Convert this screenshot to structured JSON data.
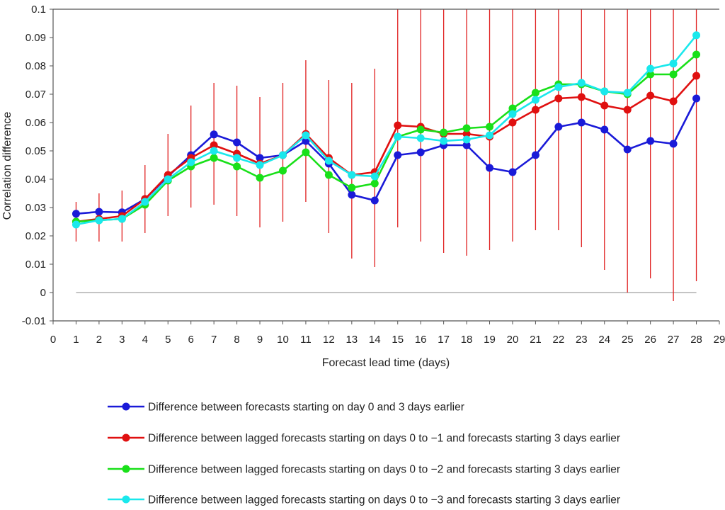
{
  "chart_data": {
    "type": "line",
    "title": "",
    "xlabel": "Forecast lead time (days)",
    "ylabel": "Correlation difference",
    "xlim": [
      0,
      29
    ],
    "ylim": [
      -0.01,
      0.1
    ],
    "xticks": [
      0,
      1,
      2,
      3,
      4,
      5,
      6,
      7,
      8,
      9,
      10,
      11,
      12,
      13,
      14,
      15,
      16,
      17,
      18,
      19,
      20,
      21,
      22,
      23,
      24,
      25,
      26,
      27,
      28,
      29
    ],
    "yticks": [
      -0.01,
      0,
      0.01,
      0.02,
      0.03,
      0.04,
      0.05,
      0.06,
      0.07,
      0.08,
      0.09,
      0.1
    ],
    "ytick_labels": [
      "-0.01",
      "0",
      "0.01",
      "0.02",
      "0.03",
      "0.04",
      "0.05",
      "0.06",
      "0.07",
      "0.08",
      "0.09",
      "0.1"
    ],
    "grid": false,
    "legend_position": "bottom",
    "zero_line_color": "#b0b0b0",
    "error_bar_color": "#e02020",
    "x": [
      1,
      2,
      3,
      4,
      5,
      6,
      7,
      8,
      9,
      10,
      11,
      12,
      13,
      14,
      15,
      16,
      17,
      18,
      19,
      20,
      21,
      22,
      23,
      24,
      25,
      26,
      27,
      28
    ],
    "error_bars": {
      "low": [
        0.018,
        0.018,
        0.018,
        0.021,
        0.027,
        0.03,
        0.031,
        0.027,
        0.023,
        0.025,
        0.032,
        0.021,
        0.012,
        0.009,
        0.023,
        0.018,
        0.014,
        0.013,
        0.015,
        0.018,
        0.022,
        0.022,
        0.016,
        0.008,
        0.0,
        0.005,
        -0.003,
        0.004
      ],
      "high": [
        0.032,
        0.035,
        0.036,
        0.045,
        0.056,
        0.066,
        0.074,
        0.073,
        0.069,
        0.074,
        0.082,
        0.075,
        0.074,
        0.079,
        0.1,
        0.1,
        0.1,
        0.1,
        0.1,
        0.1,
        0.1,
        0.1,
        0.1,
        0.1,
        0.1,
        0.1,
        0.1,
        0.1
      ]
    },
    "series": [
      {
        "name": "Difference between forecasts starting on day 0 and 3 days earlier",
        "color": "#1a1ad8",
        "values": [
          0.0278,
          0.0285,
          0.0283,
          0.033,
          0.041,
          0.0485,
          0.0558,
          0.053,
          0.0475,
          0.0485,
          0.0535,
          0.0455,
          0.0345,
          0.0325,
          0.0485,
          0.0495,
          0.052,
          0.052,
          0.044,
          0.0425,
          0.0485,
          0.0585,
          0.06,
          0.0575,
          0.0505,
          0.0535,
          0.0525,
          0.0685
        ]
      },
      {
        "name": "Difference between lagged forecasts starting on days 0 to −1 and forecasts starting 3 days earlier",
        "color": "#e01010",
        "values": [
          0.025,
          0.026,
          0.027,
          0.033,
          0.0415,
          0.0475,
          0.052,
          0.049,
          0.0455,
          0.0485,
          0.056,
          0.0475,
          0.0415,
          0.0425,
          0.059,
          0.0585,
          0.056,
          0.056,
          0.055,
          0.06,
          0.0645,
          0.0685,
          0.069,
          0.066,
          0.0645,
          0.0695,
          0.0675,
          0.0765
        ]
      },
      {
        "name": "Difference between lagged forecasts starting on days 0 to −2 and forecasts starting 3 days earlier",
        "color": "#19e019",
        "values": [
          0.025,
          0.0255,
          0.026,
          0.031,
          0.0395,
          0.0445,
          0.0475,
          0.0445,
          0.0405,
          0.043,
          0.0495,
          0.0415,
          0.037,
          0.0385,
          0.055,
          0.0575,
          0.0565,
          0.058,
          0.0585,
          0.065,
          0.0705,
          0.0735,
          0.0735,
          0.071,
          0.07,
          0.077,
          0.077,
          0.084
        ]
      },
      {
        "name": "Difference between lagged forecasts starting on days 0 to −3 and forecasts starting 3 days earlier",
        "color": "#1ae8ec",
        "values": [
          0.024,
          0.0255,
          0.026,
          0.032,
          0.04,
          0.046,
          0.05,
          0.0475,
          0.045,
          0.0485,
          0.0555,
          0.0465,
          0.0415,
          0.041,
          0.055,
          0.0545,
          0.0535,
          0.054,
          0.0555,
          0.063,
          0.068,
          0.0725,
          0.074,
          0.071,
          0.0705,
          0.079,
          0.0808,
          0.0908
        ]
      }
    ]
  }
}
